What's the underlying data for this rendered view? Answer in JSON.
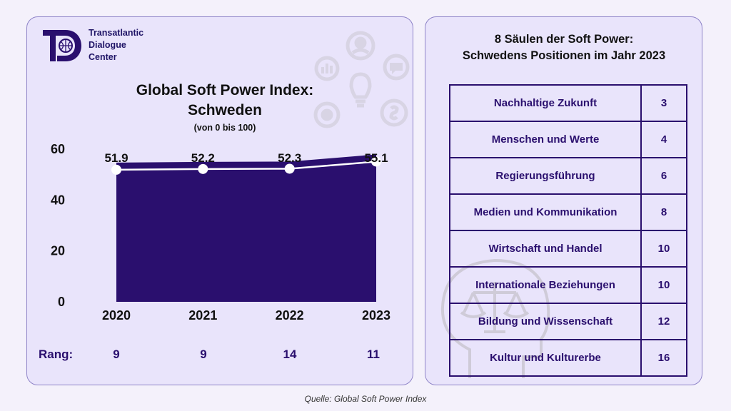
{
  "organization": {
    "name_lines": [
      "Transatlantic",
      "Dialogue",
      "Center"
    ]
  },
  "colors": {
    "primary": "#2a0f6e",
    "panel_bg": "#e9e4fb",
    "panel_border": "#8f84c8"
  },
  "chart_data": {
    "type": "area",
    "title": "Global Soft Power Index: Schweden",
    "subtitle": "(von 0 bis 100)",
    "xlabel": "",
    "ylabel": "",
    "x": [
      "2020",
      "2021",
      "2022",
      "2023"
    ],
    "values": [
      51.9,
      52.2,
      52.3,
      55.1
    ],
    "data_labels": [
      "51.9",
      "52.2",
      "52.3",
      "55.1"
    ],
    "ylim": [
      0,
      60
    ],
    "yticks": [
      0,
      20,
      40,
      60
    ],
    "grid": false,
    "legend": "none"
  },
  "ranks": {
    "label": "Rang:",
    "values": [
      "9",
      "9",
      "14",
      "11"
    ]
  },
  "pillars": {
    "title_line1": "8 Säulen der Soft Power:",
    "title_line2": "Schwedens Positionen im Jahr 2023",
    "rows": [
      {
        "name": "Nachhaltige Zukunft",
        "rank": "3"
      },
      {
        "name": "Menschen und Werte",
        "rank": "4"
      },
      {
        "name": "Regierungsführung",
        "rank": "6"
      },
      {
        "name": "Medien und Kommunikation",
        "rank": "8"
      },
      {
        "name": "Wirtschaft und Handel",
        "rank": "10"
      },
      {
        "name": "Internationale Beziehungen",
        "rank": "10"
      },
      {
        "name": "Bildung und Wissenschaft",
        "rank": "12"
      },
      {
        "name": "Kultur und Kulturerbe",
        "rank": "16"
      }
    ]
  },
  "source": "Quelle: Global Soft Power Index"
}
